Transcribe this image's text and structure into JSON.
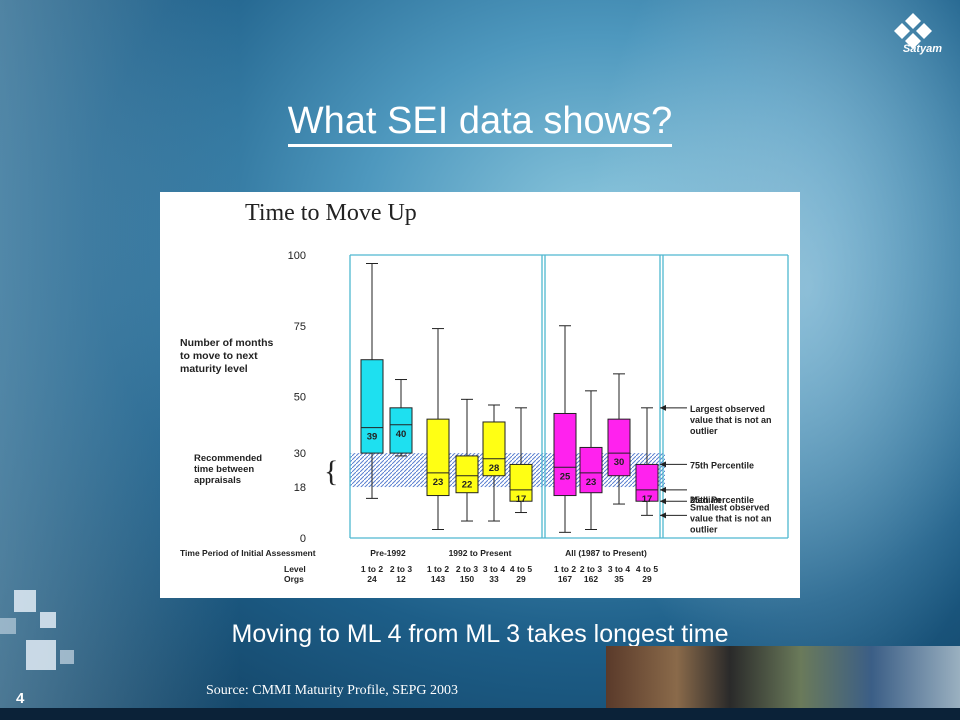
{
  "slide": {
    "title": "What SEI data shows?",
    "subtitle": "Moving to ML 4 from ML 3 takes longest time",
    "source": "Source: CMMI Maturity Profile, SEPG 2003",
    "page_number": "4",
    "logo_text": "Satyam"
  },
  "chart_data": {
    "type": "box",
    "title": "Time to Move Up",
    "ylabel": "Number of months to move to next maturity level",
    "ylim": [
      0,
      100
    ],
    "yticks": [
      0,
      18,
      30,
      50,
      75,
      100
    ],
    "recommended_band": {
      "range": [
        18,
        30
      ],
      "label": "Recommended time between appraisals"
    },
    "bottom_header": {
      "period_label": "Time Period of Initial Assessment",
      "level_label": "Level",
      "orgs_label": "Orgs"
    },
    "groups": [
      {
        "name": "Pre-1992",
        "boxes": [
          {
            "level": "1 to 2",
            "orgs": "24",
            "min": 14,
            "q1": 30,
            "median": 39,
            "q3": 63,
            "max": 97,
            "label": "39",
            "color": "#1ee0f0"
          },
          {
            "level": "2 to 3",
            "orgs": "12",
            "min": 29,
            "q1": 30,
            "median": 40,
            "q3": 46,
            "max": 56,
            "label": "40",
            "color": "#1ee0f0"
          }
        ]
      },
      {
        "name": "1992 to Present",
        "boxes": [
          {
            "level": "1 to 2",
            "orgs": "143",
            "min": 3,
            "q1": 15,
            "median": 23,
            "q3": 42,
            "max": 74,
            "label": "23",
            "color": "#ffff14"
          },
          {
            "level": "2 to 3",
            "orgs": "150",
            "min": 6,
            "q1": 16,
            "median": 22,
            "q3": 29,
            "max": 49,
            "label": "22",
            "color": "#ffff14"
          },
          {
            "level": "3 to 4",
            "orgs": "33",
            "min": 6,
            "q1": 22,
            "median": 28,
            "q3": 41,
            "max": 47,
            "label": "28",
            "color": "#ffff14"
          },
          {
            "level": "4 to 5",
            "orgs": "29",
            "min": 9,
            "q1": 13,
            "median": 17,
            "q3": 26,
            "max": 46,
            "label": "17",
            "color": "#ffff14"
          }
        ]
      },
      {
        "name": "All (1987 to Present)",
        "boxes": [
          {
            "level": "1 to 2",
            "orgs": "167",
            "min": 2,
            "q1": 15,
            "median": 25,
            "q3": 44,
            "max": 75,
            "label": "25",
            "color": "#ff22ee"
          },
          {
            "level": "2 to 3",
            "orgs": "162",
            "min": 3,
            "q1": 16,
            "median": 23,
            "q3": 32,
            "max": 52,
            "label": "23",
            "color": "#ff22ee"
          },
          {
            "level": "3 to 4",
            "orgs": "35",
            "min": 12,
            "q1": 22,
            "median": 30,
            "q3": 42,
            "max": 58,
            "label": "30",
            "color": "#ff22ee"
          },
          {
            "level": "4 to 5",
            "orgs": "29",
            "min": 8,
            "q1": 13,
            "median": 17,
            "q3": 26,
            "max": 46,
            "label": "17",
            "color": "#ff22ee"
          }
        ]
      }
    ],
    "legend": {
      "max": "Largest observed value that is not an outlier",
      "q3": "75th Percentile",
      "median": "Median",
      "q1": "25th Percentile",
      "min": "Smallest observed value that is not an outlier"
    }
  }
}
